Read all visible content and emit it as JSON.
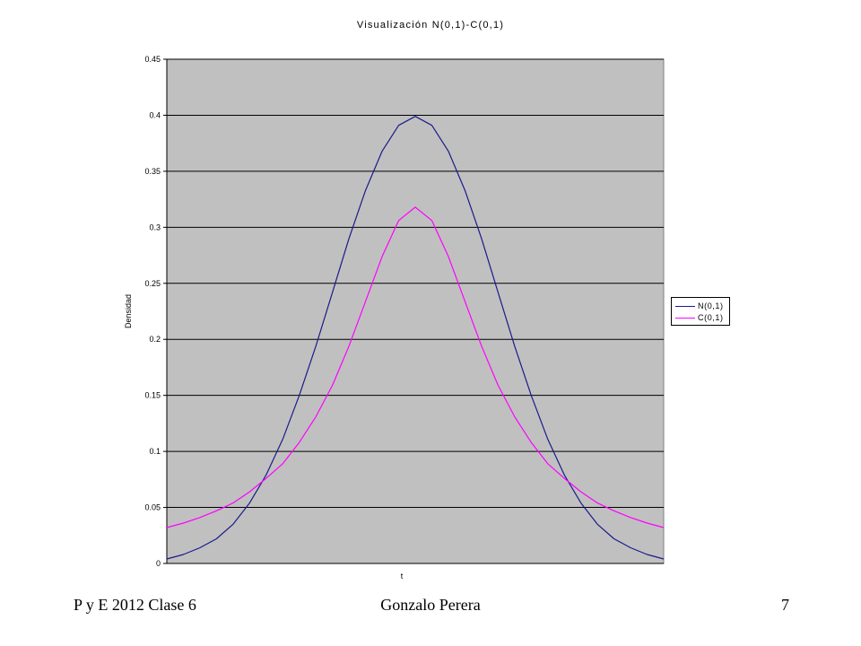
{
  "chart_data": {
    "type": "line",
    "title": "Visualización N(0,1)-C(0,1)",
    "xlabel": "t",
    "ylabel": "Densidad",
    "ylim": [
      0,
      0.45
    ],
    "yticks": [
      "0",
      "0.05",
      "0.1",
      "0.15",
      "0.2",
      "0.25",
      "0.3",
      "0.35",
      "0.4",
      "0.45"
    ],
    "x_range": [
      -3,
      3
    ],
    "grid": true,
    "legend": "right",
    "series": [
      {
        "name": "N(0,1)",
        "color": "#1a1a8c",
        "x": [
          -3,
          -2.8,
          -2.6,
          -2.4,
          -2.2,
          -2,
          -1.8,
          -1.6,
          -1.4,
          -1.2,
          -1,
          -0.8,
          -0.6,
          -0.4,
          -0.2,
          0,
          0.2,
          0.4,
          0.6,
          0.8,
          1,
          1.2,
          1.4,
          1.6,
          1.8,
          2,
          2.2,
          2.4,
          2.6,
          2.8,
          3
        ],
        "values": [
          0.004,
          0.008,
          0.014,
          0.022,
          0.035,
          0.054,
          0.079,
          0.111,
          0.15,
          0.194,
          0.242,
          0.29,
          0.333,
          0.368,
          0.391,
          0.399,
          0.391,
          0.368,
          0.333,
          0.29,
          0.242,
          0.194,
          0.15,
          0.111,
          0.079,
          0.054,
          0.035,
          0.022,
          0.014,
          0.008,
          0.004
        ]
      },
      {
        "name": "C(0,1)",
        "color": "#ff00ff",
        "x": [
          -3,
          -2.8,
          -2.6,
          -2.4,
          -2.2,
          -2,
          -1.8,
          -1.6,
          -1.4,
          -1.2,
          -1,
          -0.8,
          -0.6,
          -0.4,
          -0.2,
          0,
          0.2,
          0.4,
          0.6,
          0.8,
          1,
          1.2,
          1.4,
          1.6,
          1.8,
          2,
          2.2,
          2.4,
          2.6,
          2.8,
          3
        ],
        "values": [
          0.032,
          0.036,
          0.041,
          0.047,
          0.054,
          0.064,
          0.076,
          0.089,
          0.108,
          0.131,
          0.159,
          0.194,
          0.234,
          0.274,
          0.306,
          0.318,
          0.306,
          0.274,
          0.234,
          0.194,
          0.159,
          0.131,
          0.108,
          0.089,
          0.076,
          0.064,
          0.054,
          0.047,
          0.041,
          0.036,
          0.032
        ]
      }
    ]
  },
  "footer": {
    "left": "P y E 2012 Clase 6",
    "center": "Gonzalo Perera",
    "right": "7"
  }
}
